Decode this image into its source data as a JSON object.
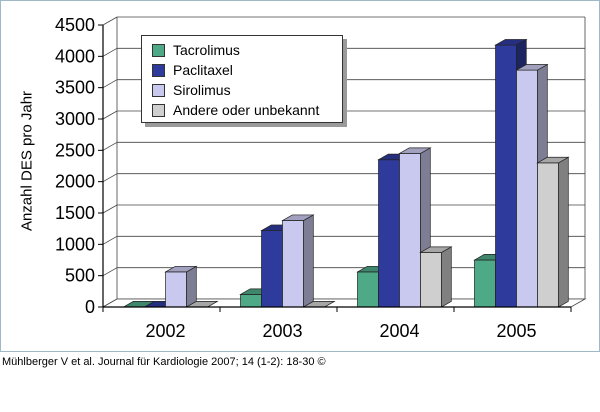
{
  "chart_data": {
    "type": "bar",
    "title": "",
    "xlabel": "",
    "ylabel": "Anzahl DES pro Jahr",
    "categories": [
      "2002",
      "2003",
      "2004",
      "2005"
    ],
    "series": [
      {
        "name": "Tacrolimus",
        "values": [
          0,
          200,
          560,
          750
        ],
        "color": "#4ea987"
      },
      {
        "name": "Paclitaxel",
        "values": [
          0,
          1220,
          2350,
          4180
        ],
        "color": "#2f3b9c"
      },
      {
        "name": "Sirolimus",
        "values": [
          560,
          1380,
          2450,
          3780
        ],
        "color": "#c9c9ef"
      },
      {
        "name": "Andere oder unbekannt",
        "values": [
          0,
          0,
          870,
          2300
        ],
        "color": "#cfcfcf"
      }
    ],
    "ylim": [
      0,
      4500
    ],
    "yticks": [
      "0",
      "500",
      "1000",
      "1500",
      "2000",
      "2500",
      "3000",
      "3500",
      "4000",
      "4500"
    ],
    "grid": true,
    "legend_position": "top-left",
    "style": "3d"
  },
  "citation": "Mühlberger V et al. Journal für Kardiologie 2007; 14 (1-2): 18-30 ©"
}
